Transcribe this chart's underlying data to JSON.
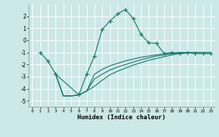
{
  "xlabel": "Humidex (Indice chaleur)",
  "ylabel": "",
  "bg_color": "#cce8e8",
  "grid_color": "#ffffff",
  "line_color": "#1a7a6e",
  "xlim": [
    -0.5,
    23.5
  ],
  "ylim": [
    -5.5,
    3.0
  ],
  "yticks": [
    -5,
    -4,
    -3,
    -2,
    -1,
    0,
    1,
    2
  ],
  "xticks": [
    0,
    1,
    2,
    3,
    4,
    5,
    6,
    7,
    8,
    9,
    10,
    11,
    12,
    13,
    14,
    15,
    16,
    17,
    18,
    19,
    20,
    21,
    22,
    23
  ],
  "line1_x": [
    1,
    2,
    3,
    6,
    7,
    8,
    9,
    10,
    11,
    12,
    13,
    14,
    15,
    16,
    17,
    18,
    19,
    20,
    21,
    22,
    23
  ],
  "line1_y": [
    -1.0,
    -1.7,
    -2.8,
    -4.5,
    -2.8,
    -1.3,
    0.9,
    1.6,
    2.2,
    2.55,
    1.8,
    0.5,
    -0.2,
    -0.25,
    -1.1,
    -1.0,
    -1.1,
    -1.0,
    -1.1,
    -1.1,
    -1.1
  ],
  "line2_x": [
    3,
    4,
    5,
    6,
    7,
    8,
    9,
    10,
    11,
    12,
    13,
    14,
    15,
    16,
    17,
    18,
    19,
    20,
    21,
    22,
    23
  ],
  "line2_y": [
    -2.8,
    -4.6,
    -4.6,
    -4.5,
    -4.2,
    -2.8,
    -2.4,
    -2.1,
    -1.9,
    -1.7,
    -1.55,
    -1.4,
    -1.3,
    -1.2,
    -1.1,
    -1.05,
    -1.0,
    -1.0,
    -1.0,
    -1.0,
    -1.0
  ],
  "line3_x": [
    3,
    4,
    5,
    6,
    7,
    8,
    9,
    10,
    11,
    12,
    13,
    14,
    15,
    16,
    17,
    18,
    19,
    20,
    21,
    22,
    23
  ],
  "line3_y": [
    -2.8,
    -4.6,
    -4.6,
    -4.5,
    -4.2,
    -3.2,
    -2.8,
    -2.45,
    -2.2,
    -2.0,
    -1.8,
    -1.6,
    -1.45,
    -1.3,
    -1.2,
    -1.1,
    -1.05,
    -1.0,
    -1.0,
    -1.0,
    -1.0
  ],
  "line4_x": [
    3,
    4,
    5,
    6,
    7,
    8,
    9,
    10,
    11,
    12,
    13,
    14,
    15,
    16,
    17,
    18,
    19,
    20,
    21,
    22,
    23
  ],
  "line4_y": [
    -2.8,
    -4.6,
    -4.6,
    -4.5,
    -4.2,
    -3.8,
    -3.3,
    -2.85,
    -2.55,
    -2.3,
    -2.05,
    -1.85,
    -1.65,
    -1.5,
    -1.35,
    -1.2,
    -1.1,
    -1.05,
    -1.0,
    -1.0,
    -1.0
  ]
}
